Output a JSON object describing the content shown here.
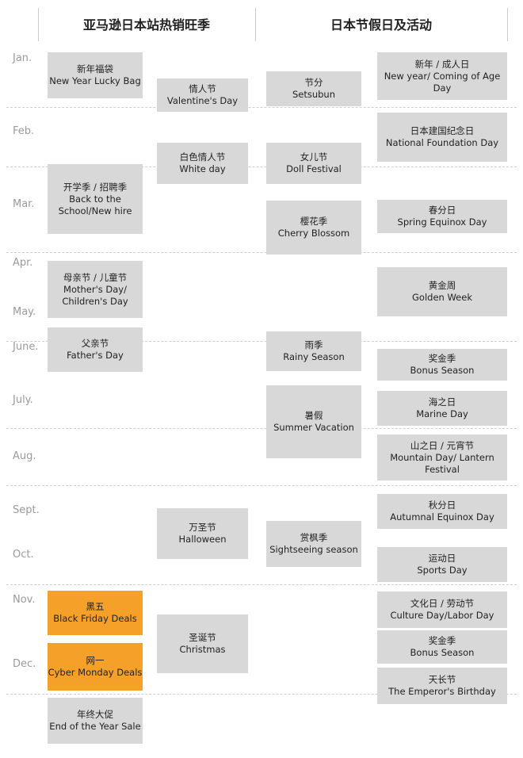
{
  "headers": {
    "left": "亚马逊日本站热销旺季",
    "right": "日本节假日及活动"
  },
  "months": [
    "Jan.",
    "Feb.",
    "Mar.",
    "Apr.",
    "May.",
    "June.",
    "July.",
    "Aug.",
    "Sept.",
    "Oct.",
    "Nov.",
    "Dec."
  ],
  "colors": {
    "box": "#d8d8d8",
    "highlight": "#f5a028"
  },
  "amazon_col1": [
    {
      "zh": "新年福袋",
      "en": "New Year Lucky Bag"
    },
    {
      "zh": "开学季 / 招聘季",
      "en": "Back to the School/New hire"
    },
    {
      "zh": "母亲节 / 儿童节",
      "en": "Mother's Day/ Children's Day"
    },
    {
      "zh": "父亲节",
      "en": "Father's Day"
    },
    {
      "zh": "黑五",
      "en": "Black Friday Deals",
      "highlight": true
    },
    {
      "zh": "网一",
      "en": "Cyber Monday Deals",
      "highlight": true
    },
    {
      "zh": "年终大促",
      "en": "End of the Year Sale"
    }
  ],
  "amazon_col2": [
    {
      "zh": "情人节",
      "en": "Valentine's Day"
    },
    {
      "zh": "白色情人节",
      "en": "White day"
    },
    {
      "zh": "万圣节",
      "en": "Halloween"
    },
    {
      "zh": "圣诞节",
      "en": "Christmas"
    }
  ],
  "japan_col1": [
    {
      "zh": "节分",
      "en": "Setsubun"
    },
    {
      "zh": "女儿节",
      "en": "Doll Festival"
    },
    {
      "zh": "樱花季",
      "en": "Cherry Blossom"
    },
    {
      "zh": "雨季",
      "en": "Rainy Season"
    },
    {
      "zh": "暑假",
      "en": "Summer Vacation"
    },
    {
      "zh": "赏枫季",
      "en": "Sightseeing season"
    }
  ],
  "japan_col2": [
    {
      "zh": "新年 / 成人日",
      "en": "New year/ Coming of Age Day"
    },
    {
      "zh": "日本建国纪念日",
      "en": "National Foundation Day"
    },
    {
      "zh": "春分日",
      "en": "Spring Equinox Day"
    },
    {
      "zh": "黄金周",
      "en": "Golden Week"
    },
    {
      "zh": "奖金季",
      "en": "Bonus Season"
    },
    {
      "zh": "海之日",
      "en": "Marine Day"
    },
    {
      "zh": "山之日 / 元宵节",
      "en": "Mountain Day/ Lantern Festival"
    },
    {
      "zh": "秋分日",
      "en": "Autumnal Equinox Day"
    },
    {
      "zh": "运动日",
      "en": "Sports Day"
    },
    {
      "zh": "文化日 / 劳动节",
      "en": "Culture Day/Labor Day"
    },
    {
      "zh": "奖金季",
      "en": "Bonus Season"
    },
    {
      "zh": "天长节",
      "en": "The Emperor's Birthday"
    }
  ]
}
